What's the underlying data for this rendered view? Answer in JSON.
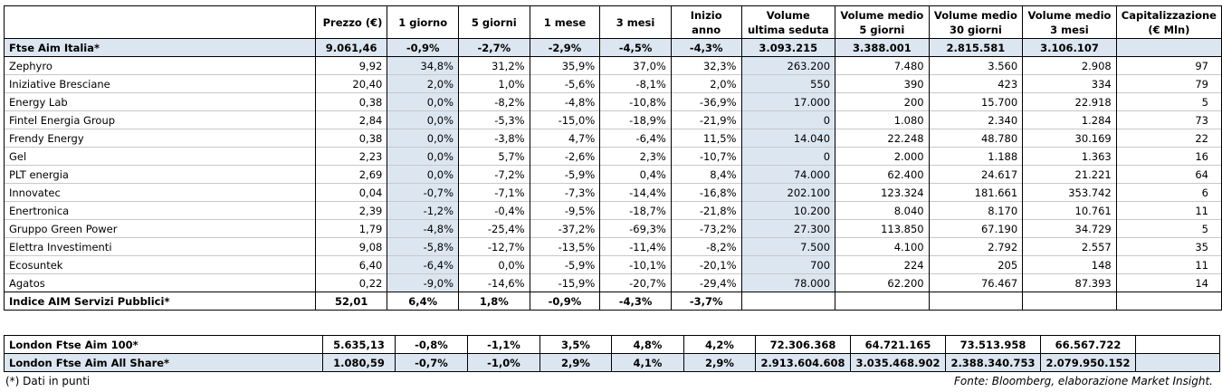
{
  "headers": [
    "",
    "Prezzo (€)",
    "1 giorno",
    "5 giorni",
    "1 mese",
    "3 mesi",
    "Inizio anno",
    "Volume ultima seduta",
    "Volume medio 5 giorni",
    "Volume medio 30 giorni",
    "Volume medio 3 mesi",
    "Capitalizzazione (€ Mln)"
  ],
  "index_row": [
    "Ftse Aim Italia*",
    "9.061,46",
    "-0,9%",
    "-2,7%",
    "-2,9%",
    "-4,5%",
    "-4,3%",
    "3.093.215",
    "3.388.001",
    "2.815.581",
    "3.106.107",
    ""
  ],
  "rows": [
    [
      "Zephyro",
      "9,92",
      "34,8%",
      "31,2%",
      "35,9%",
      "37,0%",
      "32,3%",
      "263.200",
      "7.480",
      "3.560",
      "2.908",
      "97"
    ],
    [
      "Iniziative Bresciane",
      "20,40",
      "2,0%",
      "1,0%",
      "-5,6%",
      "-8,1%",
      "2,0%",
      "550",
      "390",
      "423",
      "334",
      "79"
    ],
    [
      "Energy Lab",
      "0,38",
      "0,0%",
      "-8,2%",
      "-4,8%",
      "-10,8%",
      "-36,9%",
      "17.000",
      "200",
      "15.700",
      "22.918",
      "5"
    ],
    [
      "Fintel Energia Group",
      "2,84",
      "0,0%",
      "-5,3%",
      "-15,0%",
      "-18,9%",
      "-21,9%",
      "0",
      "1.080",
      "2.340",
      "1.284",
      "73"
    ],
    [
      "Frendy Energy",
      "0,38",
      "0,0%",
      "-3,8%",
      "4,7%",
      "-6,4%",
      "11,5%",
      "14.040",
      "22.248",
      "48.780",
      "30.169",
      "22"
    ],
    [
      "Gel",
      "2,23",
      "0,0%",
      "5,7%",
      "-2,6%",
      "2,3%",
      "-10,7%",
      "0",
      "2.000",
      "1.188",
      "1.363",
      "16"
    ],
    [
      "PLT energia",
      "2,69",
      "0,0%",
      "-7,2%",
      "-5,9%",
      "0,4%",
      "8,4%",
      "74.000",
      "62.400",
      "24.617",
      "21.221",
      "64"
    ],
    [
      "Innovatec",
      "0,04",
      "-0,7%",
      "-7,1%",
      "-7,3%",
      "-14,4%",
      "-16,8%",
      "202.100",
      "123.324",
      "181.661",
      "353.742",
      "6"
    ],
    [
      "Enertronica",
      "2,39",
      "-1,2%",
      "-0,4%",
      "-9,5%",
      "-18,7%",
      "-21,8%",
      "10.200",
      "8.040",
      "8.170",
      "10.761",
      "11"
    ],
    [
      "Gruppo Green Power",
      "1,79",
      "-4,8%",
      "-25,4%",
      "-37,2%",
      "-69,3%",
      "-73,2%",
      "27.300",
      "113.850",
      "67.190",
      "34.729",
      "5"
    ],
    [
      "Elettra Investimenti",
      "9,08",
      "-5,8%",
      "-12,7%",
      "-13,5%",
      "-11,4%",
      "-8,2%",
      "7.500",
      "4.100",
      "2.792",
      "2.557",
      "35"
    ],
    [
      "Ecosuntek",
      "6,40",
      "-6,4%",
      "0,0%",
      "-5,9%",
      "-10,1%",
      "-20,1%",
      "700",
      "224",
      "205",
      "148",
      "11"
    ],
    [
      "Agatos",
      "0,22",
      "-9,0%",
      "-14,6%",
      "-15,9%",
      "-20,7%",
      "-29,4%",
      "78.000",
      "62.200",
      "76.467",
      "87.393",
      "14"
    ]
  ],
  "sector_row": [
    "Indice AIM Servizi Pubblici*",
    "52,01",
    "6,4%",
    "1,8%",
    "-0,9%",
    "-4,3%",
    "-3,7%",
    "",
    "",
    "",
    "",
    ""
  ],
  "london_rows": [
    [
      "London Ftse Aim 100*",
      "5.635,13",
      "-0,8%",
      "-1,1%",
      "3,5%",
      "4,8%",
      "4,2%",
      "72.306.368",
      "64.721.165",
      "73.513.958",
      "66.567.722",
      ""
    ],
    [
      "London Ftse Aim All Share*",
      "1.080,59",
      "-0,7%",
      "-1,0%",
      "2,9%",
      "4,1%",
      "2,9%",
      "2.913.604.608",
      "3.035.468.902",
      "2.388.340.753",
      "2.079.950.152",
      ""
    ]
  ],
  "footnote": "(*) Dati in punti",
  "source": "Fonte: Bloomberg, elaborazione Market Insight."
}
